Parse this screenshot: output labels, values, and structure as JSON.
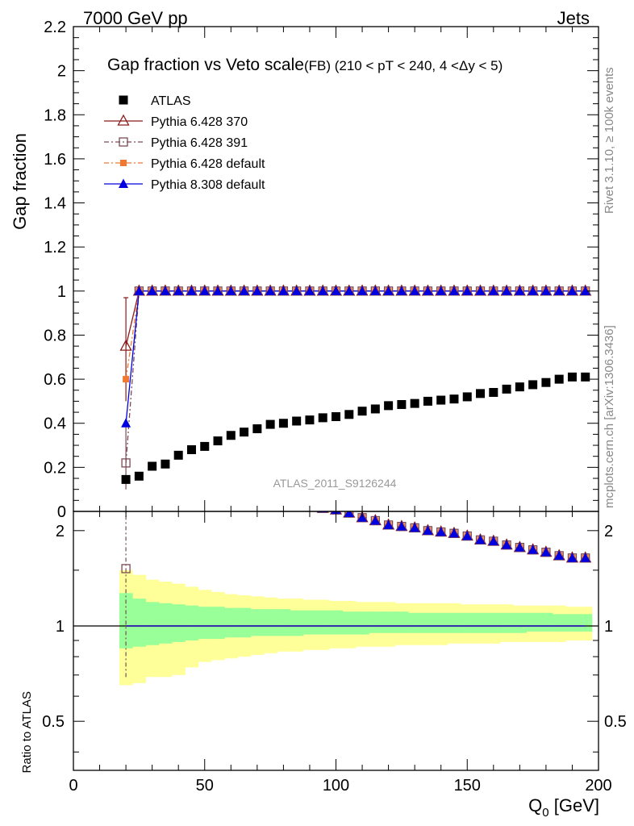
{
  "header": {
    "energy_label": "7000 GeV pp",
    "process_label": "Jets",
    "side_label_top": "Rivet 3.1.10, ≥ 100k events",
    "side_label_bottom": "mcplots.cern.ch [arXiv:1306.3436]",
    "watermark": "ATLAS_2011_S9126244"
  },
  "chart_data": {
    "type": "scatter",
    "title": "Gap fraction vs Veto scale",
    "subtitle": "(FB) (210 < pT < 240, 4 <Δy < 5)",
    "xlabel": "Q",
    "xlabel_sub": "0",
    "xlabel_unit": " [GeV]",
    "ylabel": "Gap fraction",
    "ratio_ylabel": "Ratio to ATLAS",
    "xlim": [
      0,
      200
    ],
    "ylim": [
      0,
      2.2
    ],
    "ratio_ylim": [
      0.35,
      2.3
    ],
    "ratio_scale": "log",
    "x_ticks": [
      "0",
      "50",
      "100",
      "150",
      "200"
    ],
    "y_ticks": [
      "0",
      "0.2",
      "0.4",
      "0.6",
      "0.8",
      "1",
      "1.2",
      "1.4",
      "1.6",
      "1.8",
      "2",
      "2.2"
    ],
    "ratio_ticks": [
      "0.5",
      "1",
      "2"
    ],
    "legend_position": "top-left",
    "x": [
      20,
      25,
      30,
      35,
      40,
      45,
      50,
      55,
      60,
      65,
      70,
      75,
      80,
      85,
      90,
      95,
      100,
      105,
      110,
      115,
      120,
      125,
      130,
      135,
      140,
      145,
      150,
      155,
      160,
      165,
      170,
      175,
      180,
      185,
      190,
      195
    ],
    "atlas": [
      0.145,
      0.16,
      0.205,
      0.215,
      0.255,
      0.28,
      0.295,
      0.32,
      0.345,
      0.36,
      0.375,
      0.395,
      0.4,
      0.41,
      0.415,
      0.425,
      0.43,
      0.44,
      0.455,
      0.465,
      0.48,
      0.485,
      0.49,
      0.5,
      0.505,
      0.51,
      0.52,
      0.535,
      0.54,
      0.555,
      0.565,
      0.575,
      0.585,
      0.6,
      0.61,
      0.61
    ],
    "band_outer": [
      [
        0.65,
        1.5
      ],
      [
        0.66,
        1.45
      ],
      [
        0.69,
        1.4
      ],
      [
        0.69,
        1.38
      ],
      [
        0.7,
        1.36
      ],
      [
        0.74,
        1.33
      ],
      [
        0.77,
        1.3
      ],
      [
        0.78,
        1.28
      ],
      [
        0.79,
        1.26
      ],
      [
        0.8,
        1.25
      ],
      [
        0.81,
        1.24
      ],
      [
        0.82,
        1.23
      ],
      [
        0.83,
        1.22
      ],
      [
        0.83,
        1.22
      ],
      [
        0.84,
        1.21
      ],
      [
        0.84,
        1.21
      ],
      [
        0.85,
        1.2
      ],
      [
        0.85,
        1.2
      ],
      [
        0.86,
        1.19
      ],
      [
        0.86,
        1.19
      ],
      [
        0.86,
        1.19
      ],
      [
        0.87,
        1.18
      ],
      [
        0.87,
        1.18
      ],
      [
        0.87,
        1.18
      ],
      [
        0.87,
        1.18
      ],
      [
        0.88,
        1.18
      ],
      [
        0.88,
        1.17
      ],
      [
        0.88,
        1.17
      ],
      [
        0.88,
        1.17
      ],
      [
        0.89,
        1.17
      ],
      [
        0.89,
        1.16
      ],
      [
        0.89,
        1.16
      ],
      [
        0.89,
        1.16
      ],
      [
        0.89,
        1.16
      ],
      [
        0.9,
        1.15
      ],
      [
        0.9,
        1.15
      ]
    ],
    "band_inner": [
      [
        0.85,
        1.27
      ],
      [
        0.86,
        1.22
      ],
      [
        0.87,
        1.19
      ],
      [
        0.88,
        1.18
      ],
      [
        0.89,
        1.17
      ],
      [
        0.9,
        1.16
      ],
      [
        0.91,
        1.15
      ],
      [
        0.91,
        1.15
      ],
      [
        0.92,
        1.14
      ],
      [
        0.92,
        1.14
      ],
      [
        0.93,
        1.13
      ],
      [
        0.93,
        1.13
      ],
      [
        0.93,
        1.13
      ],
      [
        0.93,
        1.12
      ],
      [
        0.94,
        1.12
      ],
      [
        0.94,
        1.12
      ],
      [
        0.94,
        1.12
      ],
      [
        0.94,
        1.11
      ],
      [
        0.94,
        1.11
      ],
      [
        0.95,
        1.11
      ],
      [
        0.95,
        1.11
      ],
      [
        0.95,
        1.11
      ],
      [
        0.95,
        1.1
      ],
      [
        0.95,
        1.1
      ],
      [
        0.95,
        1.1
      ],
      [
        0.95,
        1.1
      ],
      [
        0.95,
        1.1
      ],
      [
        0.95,
        1.1
      ],
      [
        0.95,
        1.1
      ],
      [
        0.95,
        1.1
      ],
      [
        0.95,
        1.1
      ],
      [
        0.96,
        1.1
      ],
      [
        0.96,
        1.1
      ],
      [
        0.96,
        1.09
      ],
      [
        0.96,
        1.09
      ],
      [
        0.96,
        1.09
      ]
    ],
    "series": [
      {
        "name": "ATLAS",
        "key": "atlas",
        "color": "#000000",
        "marker": "filled-square"
      },
      {
        "name": "Pythia 6.428 370",
        "key": "p370",
        "color": "#8b1a1a",
        "marker": "open-triangle",
        "line": "solid",
        "values": [
          0.75,
          1,
          1,
          1,
          1,
          1,
          1,
          1,
          1,
          1,
          1,
          1,
          1,
          1,
          1,
          1,
          1,
          1,
          1,
          1,
          1,
          1,
          1,
          1,
          1,
          1,
          1,
          1,
          1,
          1,
          1,
          1,
          1,
          1,
          1,
          1
        ],
        "err_low": 0.5,
        "err_high": 0.97
      },
      {
        "name": "Pythia 6.428 391",
        "key": "p391",
        "color": "#7a4a55",
        "marker": "open-square",
        "line": "dash-dot",
        "values": [
          0.22,
          1,
          1,
          1,
          1,
          1,
          1,
          1,
          1,
          1,
          1,
          1,
          1,
          1,
          1,
          1,
          1,
          1,
          1,
          1,
          1,
          1,
          1,
          1,
          1,
          1,
          1,
          1,
          1,
          1,
          1,
          1,
          1,
          1,
          1,
          1
        ],
        "err_low": 0.1,
        "err_high": 0.4
      },
      {
        "name": "Pythia 6.428 default",
        "key": "pdef",
        "color": "#f07830",
        "marker": "filled-square-small",
        "line": "dash-dot",
        "values": [
          0.6,
          1,
          1,
          1,
          1,
          1,
          1,
          1,
          1,
          1,
          1,
          1,
          1,
          1,
          1,
          1,
          1,
          1,
          1,
          1,
          1,
          1,
          1,
          1,
          1,
          1,
          1,
          1,
          1,
          1,
          1,
          1,
          1,
          1,
          1,
          1
        ]
      },
      {
        "name": "Pythia 8.308 default",
        "key": "p8",
        "color": "#0000e0",
        "marker": "filled-triangle",
        "line": "solid",
        "values": [
          0.4,
          1,
          1,
          1,
          1,
          1,
          1,
          1,
          1,
          1,
          1,
          1,
          1,
          1,
          1,
          1,
          1,
          1,
          1,
          1,
          1,
          1,
          1,
          1,
          1,
          1,
          1,
          1,
          1,
          1,
          1,
          1,
          1,
          1,
          1,
          1
        ]
      }
    ]
  }
}
